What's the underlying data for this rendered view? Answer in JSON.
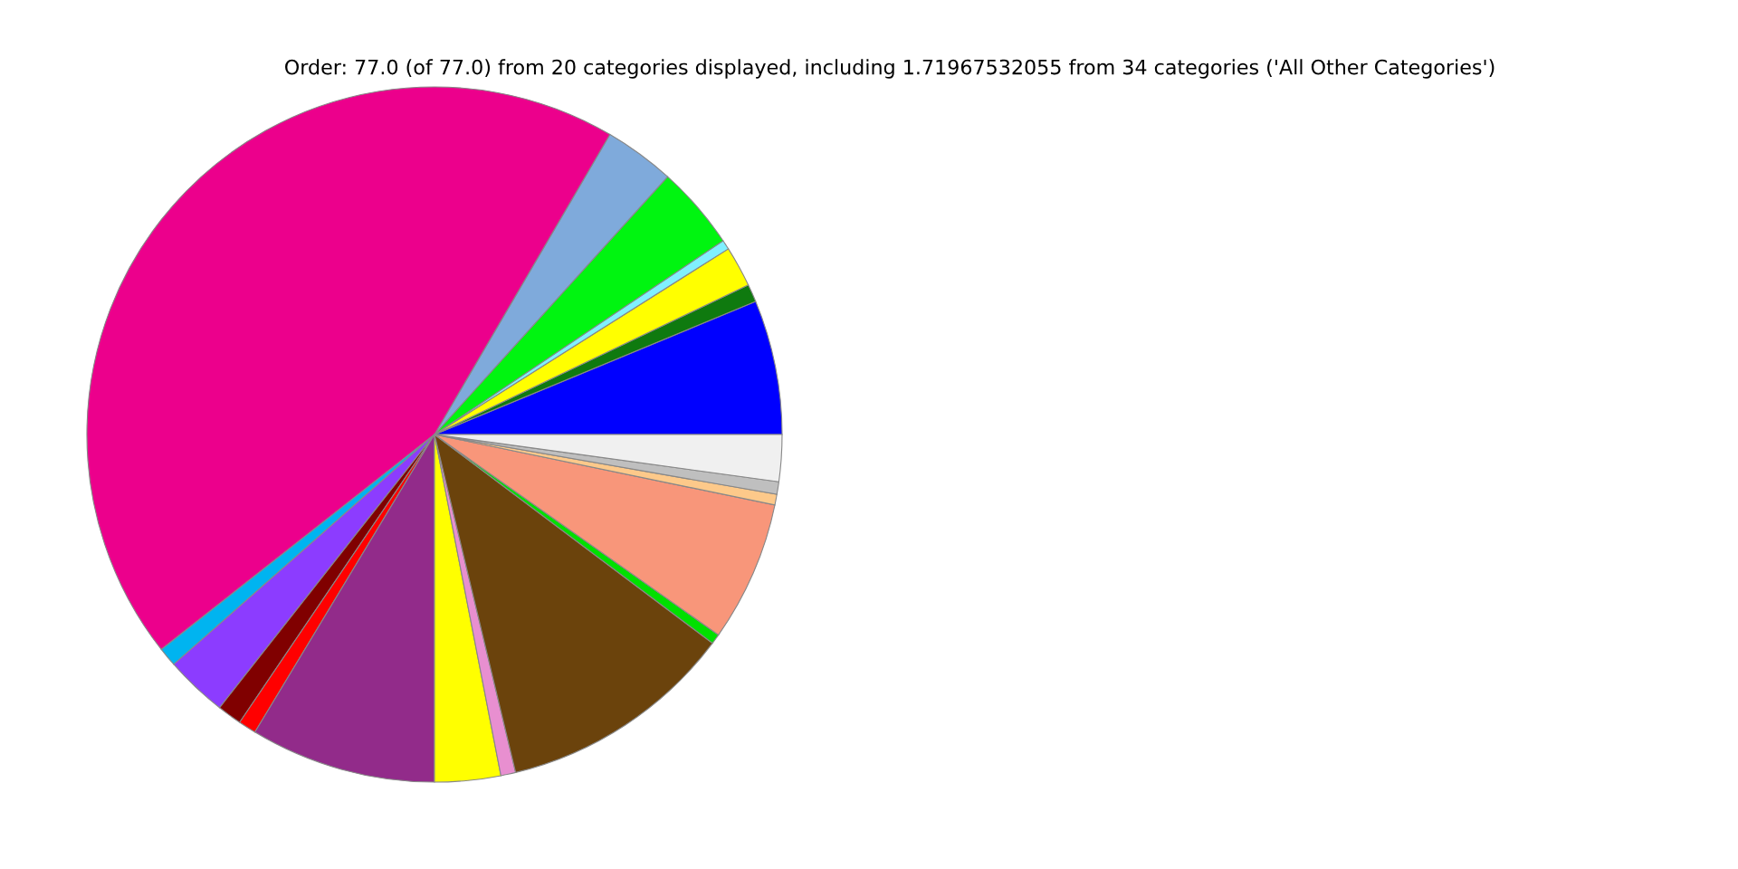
{
  "chart_data": {
    "type": "pie",
    "title": "Order: 77.0 (of 77.0) from 20 categories displayed, including 1.71967532055 from 34 categories ('All Other Categories')",
    "categories": [
      null,
      null,
      null,
      null,
      null,
      null,
      null,
      null,
      null,
      null,
      null,
      null,
      null,
      null,
      null,
      null,
      null,
      null,
      null,
      null
    ],
    "values": [
      6.25,
      0.83,
      1.89,
      0.44,
      3.89,
      3.28,
      44.03,
      0.89,
      2.89,
      1.14,
      0.83,
      8.64,
      3.06,
      0.69,
      11.0,
      0.47,
      6.53,
      0.5,
      0.58,
      2.17
    ],
    "colors": [
      "#0000ff",
      "#0f7a0f",
      "#ffff00",
      "#80f0ff",
      "#00f510",
      "#7faadb",
      "#ec008c",
      "#00b4f0",
      "#8c3cff",
      "#800000",
      "#ff0000",
      "#922b8a",
      "#ffff00",
      "#e88fd0",
      "#6b430c",
      "#00e000",
      "#f8967a",
      "#fdc98a",
      "#bfbfbf",
      "#f0f0f0"
    ]
  }
}
